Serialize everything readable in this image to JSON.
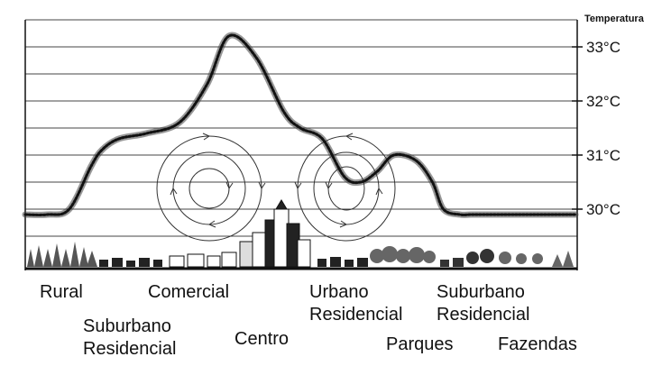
{
  "chart_data": {
    "type": "line",
    "title": "",
    "ylabel": "Temperatura",
    "ylim": [
      28.9,
      33.5
    ],
    "y_ticks": [
      "33°C",
      "32°C",
      "31°C",
      "30°C"
    ],
    "y_tick_values": [
      33,
      32,
      31,
      30
    ],
    "series": [
      {
        "x": [
          0,
          4,
          8,
          12,
          14,
          17,
          22,
          28,
          33,
          37,
          42,
          47,
          50,
          54,
          58,
          61,
          64,
          67,
          71,
          74,
          76,
          79,
          81,
          84,
          88,
          91,
          96,
          100
        ],
        "values": [
          29.9,
          29.9,
          30.0,
          30.8,
          31.1,
          31.3,
          31.4,
          31.6,
          32.3,
          33.2,
          32.8,
          31.8,
          31.5,
          31.3,
          30.6,
          30.5,
          30.7,
          31.0,
          30.9,
          30.5,
          30.0,
          29.9,
          29.9,
          29.9,
          29.9,
          29.9,
          29.9,
          29.9
        ]
      }
    ]
  },
  "zones": {
    "rural": "Rural",
    "suburbano_residencial_1": [
      "Suburbano",
      "Residencial"
    ],
    "comercial": "Comercial",
    "centro": "Centro",
    "urbano_residencial": [
      "Urbano",
      "Residencial"
    ],
    "parques": "Parques",
    "suburbano_residencial_2": [
      "Suburbano",
      "Residencial"
    ],
    "fazendas": "Fazendas"
  }
}
